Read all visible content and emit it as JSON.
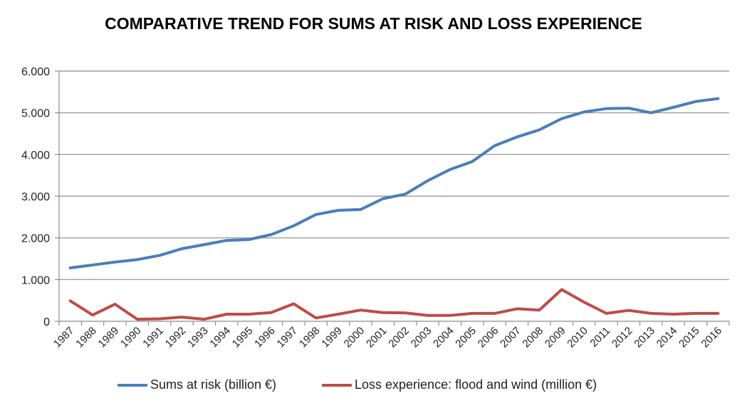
{
  "chart_data": {
    "type": "line",
    "title": "COMPARATIVE TREND FOR SUMS AT RISK AND LOSS EXPERIENCE",
    "xlabel": "",
    "ylabel": "",
    "ylim": [
      0,
      6000
    ],
    "yticks": [
      0,
      1000,
      2000,
      3000,
      4000,
      5000,
      6000
    ],
    "ytick_labels": [
      "0",
      "1.000",
      "2.000",
      "3.000",
      "4.000",
      "5.000",
      "6.000"
    ],
    "grid": true,
    "legend_position": "bottom",
    "x": [
      "1987",
      "1988",
      "1989",
      "1990",
      "1991",
      "1992",
      "1993",
      "1994",
      "1995",
      "1996",
      "1997",
      "1998",
      "1999",
      "2000",
      "2001",
      "2002",
      "2003",
      "2004",
      "2005",
      "2006",
      "2007",
      "2008",
      "2009",
      "2010",
      "2011",
      "2012",
      "2013",
      "2014",
      "2015",
      "2016"
    ],
    "series": [
      {
        "name": "Sums at risk (billion €)",
        "color": "#4a7ebb",
        "values": [
          1280,
          1350,
          1420,
          1480,
          1580,
          1740,
          1840,
          1940,
          1960,
          2080,
          2290,
          2560,
          2660,
          2680,
          2940,
          3050,
          3370,
          3640,
          3830,
          4210,
          4420,
          4590,
          4860,
          5020,
          5100,
          5110,
          5000,
          5130,
          5270,
          5340
        ]
      },
      {
        "name": "Loss experience: flood and wind (million €)",
        "color": "#be4b48",
        "values": [
          490,
          150,
          410,
          50,
          60,
          100,
          50,
          170,
          170,
          210,
          420,
          80,
          170,
          270,
          210,
          200,
          140,
          140,
          190,
          190,
          300,
          270,
          760,
          460,
          190,
          260,
          190,
          170,
          190,
          190
        ]
      }
    ]
  }
}
